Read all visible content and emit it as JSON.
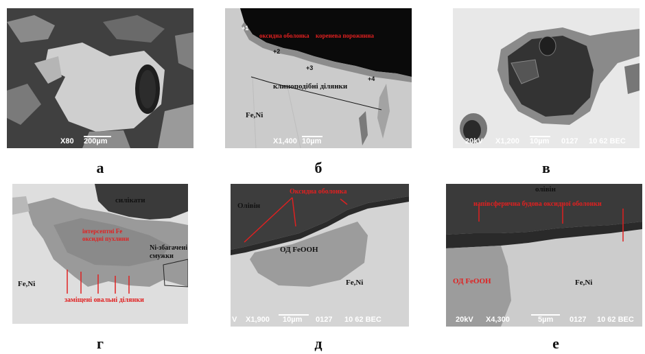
{
  "panels": [
    {
      "id": "a",
      "caption": "а",
      "scalebar": {
        "mag": "X80",
        "scale": "200µm"
      }
    },
    {
      "id": "b",
      "caption": "б",
      "labels": {
        "shell": "оксидна оболонка",
        "cavity": "коренева порожнина",
        "wedge": "клиноподібні ділянки",
        "metal": "Fe,Ni"
      },
      "points": [
        "+1",
        "+2",
        "+3",
        "+4"
      ],
      "scalebar": {
        "mag": "X1,400",
        "scale": "10µm"
      }
    },
    {
      "id": "v",
      "caption": "в",
      "scalebar": {
        "kv": "20kV",
        "mag": "X1,200",
        "scale": "10µm",
        "code": "0127",
        "session": "10 62 BEC"
      }
    },
    {
      "id": "g",
      "caption": "г",
      "labels": {
        "silicates": "силікати",
        "inclusions": "інтерсептні Fe оксидні пухлини",
        "ni_rich": "Ni-збагачені смужки",
        "metal": "Fe,Ni",
        "replaced": "заміщені овальні ділянки"
      }
    },
    {
      "id": "d",
      "caption": "д",
      "labels": {
        "olivine": "Олівін",
        "shell": "Оксидна оболонка",
        "inclusion": "ОД FeOOH",
        "metal": "Fe,Ni"
      },
      "scalebar": {
        "kv": "V",
        "mag": "X1,900",
        "scale": "10µm",
        "code": "0127",
        "session": "10 62 BEC"
      }
    },
    {
      "id": "e",
      "caption": "е",
      "labels": {
        "olivine": "олівін",
        "annotation": "напівсферична будова оксидної оболонки",
        "inclusion": "ОД FeOOH",
        "metal": "Fe,Ni"
      },
      "scalebar": {
        "kv": "20kV",
        "mag": "X4,300",
        "scale": "5µm",
        "code": "0127",
        "session": "10 62 BEC"
      }
    }
  ],
  "colors": {
    "annotation_red": "#e02020",
    "annotation_dark": "#111111",
    "scale_text": "#ffffff"
  }
}
